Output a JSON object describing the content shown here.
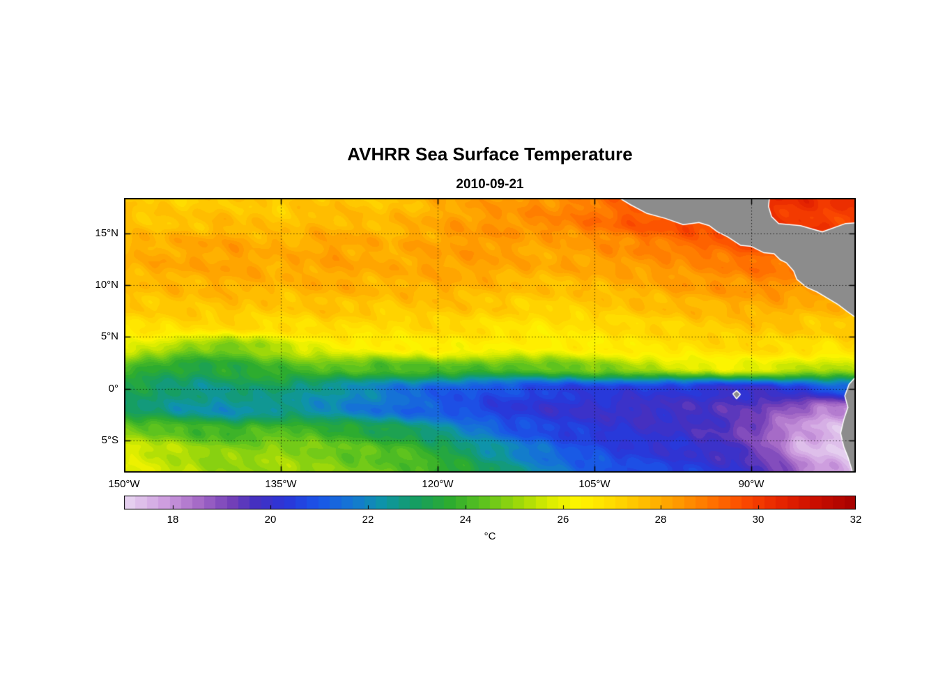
{
  "title": "AVHRR Sea Surface Temperature",
  "subtitle": "2010-09-21",
  "chart_data": {
    "type": "heatmap",
    "title": "AVHRR Sea Surface Temperature",
    "subtitle": "2010-09-21",
    "lon_range": [
      -150,
      -80
    ],
    "lat_range": [
      -8.1,
      18.43
    ],
    "x_ticks": [
      {
        "value": -150,
        "label": "150°W"
      },
      {
        "value": -135,
        "label": "135°W"
      },
      {
        "value": -120,
        "label": "120°W"
      },
      {
        "value": -105,
        "label": "105°W"
      },
      {
        "value": -90,
        "label": "90°W"
      }
    ],
    "y_ticks": [
      {
        "value": 15,
        "label": "15°N"
      },
      {
        "value": 10,
        "label": "10°N"
      },
      {
        "value": 5,
        "label": "5°N"
      },
      {
        "value": 0,
        "label": "0°"
      },
      {
        "value": -5,
        "label": "5°S"
      }
    ],
    "colorbar": {
      "min": 17,
      "max": 32,
      "levels": 64,
      "label": "°C",
      "ticks": [
        {
          "value": 18,
          "label": "18"
        },
        {
          "value": 20,
          "label": "20"
        },
        {
          "value": 22,
          "label": "22"
        },
        {
          "value": 24,
          "label": "24"
        },
        {
          "value": 26,
          "label": "26"
        },
        {
          "value": 28,
          "label": "28"
        },
        {
          "value": 30,
          "label": "30"
        },
        {
          "value": 32,
          "label": "32"
        }
      ]
    },
    "colormap_stops": [
      [
        17.0,
        "#E9D7F2"
      ],
      [
        17.8,
        "#CFA0E0"
      ],
      [
        18.5,
        "#A86CC8"
      ],
      [
        19.2,
        "#7440B8"
      ],
      [
        19.7,
        "#4530C0"
      ],
      [
        20.3,
        "#2A35D8"
      ],
      [
        21.0,
        "#1A55E8"
      ],
      [
        21.7,
        "#1478D2"
      ],
      [
        22.3,
        "#0E94A8"
      ],
      [
        23.0,
        "#169E60"
      ],
      [
        23.7,
        "#2EAC2E"
      ],
      [
        24.4,
        "#5FC41E"
      ],
      [
        25.1,
        "#9ED80A"
      ],
      [
        25.7,
        "#D8EC00"
      ],
      [
        26.3,
        "#FFF500"
      ],
      [
        27.0,
        "#FFDC00"
      ],
      [
        27.7,
        "#FFBB00"
      ],
      [
        28.3,
        "#FF9D00"
      ],
      [
        29.0,
        "#FF7400"
      ],
      [
        29.7,
        "#FB4A00"
      ],
      [
        30.4,
        "#E82600"
      ],
      [
        31.2,
        "#C90D00"
      ],
      [
        32.0,
        "#A50000"
      ]
    ],
    "land_color": "#8C8C8C",
    "coast_color": "#FFFFFF",
    "grid": {
      "lons": [
        -150,
        -147.5,
        -145,
        -142.5,
        -140,
        -137.5,
        -135,
        -132.5,
        -130,
        -127.5,
        -125,
        -122.5,
        -120,
        -117.5,
        -115,
        -112.5,
        -110,
        -107.5,
        -105,
        -102.5,
        -100,
        -97.5,
        -95,
        -92.5,
        -90,
        -87.5,
        -85,
        -82.5,
        -80
      ],
      "lats": [
        18,
        16,
        14,
        12,
        10,
        8,
        6,
        4,
        2,
        0,
        -2,
        -4,
        -6,
        -8
      ],
      "sst": [
        [
          27.5,
          27.4,
          27.3,
          27.4,
          27.5,
          27.4,
          27.3,
          27.5,
          27.6,
          27.5,
          27.5,
          27.7,
          27.9,
          28.1,
          28.3,
          28.4,
          28.5,
          28.7,
          28.9,
          29.3,
          29.7,
          29.9,
          30.0,
          30.1,
          30.2,
          30.3,
          30.2,
          30.1,
          30.0
        ],
        [
          27.6,
          27.5,
          27.5,
          27.6,
          27.7,
          27.6,
          27.5,
          27.7,
          27.8,
          27.7,
          27.7,
          27.9,
          28.1,
          28.3,
          28.4,
          28.5,
          28.6,
          28.8,
          29.0,
          29.3,
          29.5,
          29.7,
          29.8,
          30.0,
          30.1,
          30.1,
          30.0,
          29.9,
          30.0
        ],
        [
          27.8,
          27.9,
          28.0,
          28.1,
          28.2,
          28.0,
          27.9,
          28.0,
          28.2,
          28.1,
          27.9,
          28.1,
          28.2,
          28.3,
          28.4,
          28.2,
          28.1,
          28.2,
          28.4,
          28.6,
          28.8,
          29.0,
          29.2,
          29.4,
          29.7,
          29.9,
          29.8,
          29.6,
          29.6
        ],
        [
          27.9,
          28.0,
          28.1,
          28.1,
          28.2,
          28.1,
          28.0,
          28.1,
          28.2,
          28.1,
          28.0,
          28.1,
          28.2,
          28.2,
          28.2,
          28.1,
          28.0,
          28.1,
          28.2,
          28.3,
          28.4,
          28.5,
          28.6,
          28.8,
          29.0,
          29.1,
          29.0,
          28.9,
          29.0
        ],
        [
          27.6,
          27.7,
          27.8,
          27.8,
          28.0,
          27.9,
          27.8,
          27.9,
          28.0,
          27.9,
          27.8,
          27.9,
          28.0,
          27.9,
          27.8,
          27.7,
          27.6,
          27.7,
          27.8,
          27.9,
          28.0,
          28.2,
          28.3,
          28.4,
          28.5,
          28.6,
          28.5,
          28.4,
          28.5
        ],
        [
          27.3,
          27.4,
          27.5,
          27.5,
          27.6,
          27.5,
          27.4,
          27.5,
          27.6,
          27.5,
          27.4,
          27.5,
          27.6,
          27.5,
          27.4,
          27.3,
          27.2,
          27.3,
          27.4,
          27.5,
          27.6,
          27.7,
          27.8,
          27.9,
          28.0,
          28.0,
          27.9,
          27.8,
          28.0
        ],
        [
          26.8,
          26.9,
          27.0,
          27.0,
          27.1,
          27.0,
          26.9,
          27.0,
          27.1,
          27.0,
          26.9,
          27.0,
          27.1,
          27.0,
          26.9,
          26.8,
          26.7,
          26.8,
          26.9,
          27.0,
          27.1,
          27.2,
          27.3,
          27.4,
          27.5,
          27.5,
          27.4,
          27.3,
          27.5
        ],
        [
          26.0,
          25.7,
          25.1,
          24.7,
          24.6,
          24.9,
          25.5,
          25.9,
          26.2,
          26.3,
          26.4,
          26.4,
          26.5,
          26.5,
          26.4,
          26.4,
          26.3,
          26.4,
          26.5,
          26.6,
          26.7,
          26.8,
          26.9,
          27.0,
          27.0,
          27.0,
          26.9,
          26.8,
          27.0
        ],
        [
          24.0,
          23.7,
          23.4,
          23.3,
          23.5,
          23.8,
          24.0,
          24.2,
          24.3,
          24.2,
          24.0,
          24.2,
          24.3,
          24.2,
          24.1,
          24.2,
          24.3,
          24.5,
          24.8,
          25.0,
          25.3,
          25.6,
          25.8,
          26.0,
          26.0,
          25.8,
          25.5,
          25.3,
          25.5
        ],
        [
          23.2,
          23.0,
          22.8,
          22.6,
          22.8,
          23.0,
          22.8,
          22.5,
          22.3,
          22.1,
          21.8,
          21.5,
          21.2,
          21.0,
          20.9,
          20.8,
          20.6,
          20.5,
          20.5,
          20.4,
          20.3,
          20.3,
          20.2,
          20.0,
          20.0,
          20.2,
          20.5,
          21.0,
          21.2
        ],
        [
          23.0,
          22.8,
          22.5,
          22.3,
          22.1,
          22.3,
          22.5,
          22.3,
          22.0,
          21.8,
          21.5,
          21.3,
          21.0,
          20.8,
          20.5,
          20.3,
          20.2,
          20.0,
          20.0,
          19.9,
          19.8,
          19.8,
          19.7,
          19.6,
          19.4,
          19.0,
          18.5,
          18.1,
          18.0
        ],
        [
          24.8,
          24.5,
          24.3,
          24.0,
          23.8,
          24.0,
          24.2,
          24.0,
          23.8,
          23.5,
          23.2,
          23.0,
          22.5,
          22.0,
          21.5,
          21.0,
          20.8,
          20.5,
          20.3,
          20.2,
          20.0,
          20.0,
          19.8,
          19.5,
          19.1,
          18.4,
          17.8,
          17.5,
          17.5
        ],
        [
          25.8,
          25.6,
          25.3,
          25.0,
          24.8,
          24.9,
          25.0,
          24.8,
          24.6,
          24.4,
          24.2,
          24.0,
          23.5,
          23.0,
          22.5,
          22.0,
          21.5,
          21.0,
          20.8,
          20.5,
          20.3,
          20.2,
          20.0,
          19.8,
          19.4,
          18.5,
          17.6,
          17.3,
          17.3
        ],
        [
          25.9,
          25.7,
          25.4,
          25.2,
          25.0,
          25.1,
          25.2,
          25.0,
          24.8,
          24.6,
          24.5,
          24.3,
          24.0,
          23.5,
          23.0,
          22.5,
          22.0,
          21.6,
          21.2,
          21.0,
          20.8,
          20.6,
          20.4,
          20.2,
          19.9,
          19.4,
          18.4,
          17.7,
          17.5
        ]
      ]
    },
    "land_polygons": [
      {
        "name": "central-america",
        "points": [
          [
            -102.8,
            18.6
          ],
          [
            -101.5,
            17.8
          ],
          [
            -100,
            17
          ],
          [
            -98.2,
            16.5
          ],
          [
            -96.5,
            15.9
          ],
          [
            -95,
            16.1
          ],
          [
            -94,
            15.8
          ],
          [
            -93.2,
            15.2
          ],
          [
            -92.2,
            14.7
          ],
          [
            -91,
            13.9
          ],
          [
            -90,
            13.8
          ],
          [
            -88.8,
            13.2
          ],
          [
            -87.8,
            13.1
          ],
          [
            -87.2,
            12.5
          ],
          [
            -86.6,
            12.2
          ],
          [
            -85.9,
            11.4
          ],
          [
            -85.6,
            10.6
          ],
          [
            -85,
            10.1
          ],
          [
            -84.6,
            9.8
          ],
          [
            -83.7,
            9.4
          ],
          [
            -82.7,
            8.8
          ],
          [
            -81.7,
            8.2
          ],
          [
            -80.8,
            7.5
          ],
          [
            -79.8,
            6.8
          ],
          [
            -79.6,
            6.6
          ],
          [
            -79.6,
            16.0
          ],
          [
            -81,
            15.9
          ],
          [
            -83.2,
            15.1
          ],
          [
            -85.3,
            15.7
          ],
          [
            -87.4,
            15.9
          ],
          [
            -88.1,
            16.6
          ],
          [
            -88.4,
            17.6
          ],
          [
            -88.3,
            18.6
          ]
        ]
      },
      {
        "name": "south-america",
        "points": [
          [
            -79.8,
            1.3
          ],
          [
            -80.6,
            0.4
          ],
          [
            -81,
            -0.7
          ],
          [
            -80.7,
            -1.8
          ],
          [
            -81.1,
            -3
          ],
          [
            -81.4,
            -4.3
          ],
          [
            -81.1,
            -5.6
          ],
          [
            -80.7,
            -6.6
          ],
          [
            -80.4,
            -7.6
          ],
          [
            -80.2,
            -8.3
          ],
          [
            -79.6,
            -8.3
          ],
          [
            -79.6,
            1.3
          ]
        ]
      },
      {
        "name": "galapagos",
        "points": [
          [
            -91.7,
            -0.5
          ],
          [
            -91.4,
            -0.25
          ],
          [
            -91.1,
            -0.55
          ],
          [
            -91.4,
            -0.9
          ]
        ]
      }
    ]
  }
}
